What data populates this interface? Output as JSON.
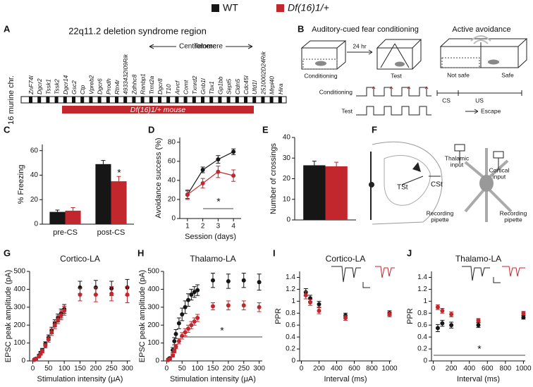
{
  "legend": [
    {
      "name": "WT",
      "color": "#161616"
    },
    {
      "name": "Df(16)1/+",
      "color": "#c1272d"
    }
  ],
  "panel_labels": [
    "A",
    "B",
    "C",
    "D",
    "E",
    "F",
    "G",
    "H",
    "I",
    "J"
  ],
  "panel_a": {
    "title": "22q11.2 deletion syndrome region",
    "centromere": "Centromere",
    "telomere": "Telomere",
    "chromosome": "16 murine chr.",
    "genes": [
      "ZnF74l",
      "Dgcr2",
      "Tssk1",
      "Tssk2",
      "Dgcr14",
      "Gsc2",
      "Ctp",
      "Vpreb2",
      "Dgcr6",
      "Prodh",
      "Rtn4r",
      "4933432I09Rik",
      "Zdhhc8",
      "Ranbp1",
      "Trmt2a",
      "Dgcr8",
      "T10",
      "Arvcf",
      "Comt",
      "Txnrd2",
      "Gnb1l",
      "Tbx1",
      "Gp1bb",
      "Sept5",
      "Cldn5",
      "Cdc45l",
      "Ufd1l",
      "2510002D24Rik",
      "Mrpl40",
      "Hira"
    ],
    "deletion": "Df(16)1/+ mouse"
  },
  "panel_b": {
    "fear_title": "Auditory-cued fear conditioning",
    "avoid_title": "Active avoidance",
    "delay": "24 hr",
    "box_conditioning": "Conditioning",
    "box_test": "Test",
    "not_safe": "Not safe",
    "safe": "Safe",
    "row_conditioning": "Conditioning",
    "row_test": "Test",
    "cs": "CS",
    "us": "US",
    "escape": "Escape"
  },
  "panel_f": {
    "tst": "TSt",
    "cst": "CSt",
    "thalamic": [
      "Thalamic",
      "input"
    ],
    "cortical": [
      "Cortical",
      "input"
    ],
    "pipette_left": [
      "Recording",
      "pipette"
    ],
    "pipette_right": [
      "Recording",
      "pipette"
    ]
  },
  "chart_data": [
    {
      "type": "bar",
      "ylabel": "% Freezing",
      "categories": [
        "pre-CS",
        "post-CS"
      ],
      "ylim": [
        0,
        65
      ],
      "yticks": [
        0,
        20,
        40,
        60
      ],
      "annotation": "*",
      "series": [
        {
          "color": "#161616",
          "values": [
            10,
            49
          ],
          "errors": [
            1.5,
            3
          ]
        },
        {
          "color": "#c1272d",
          "values": [
            11,
            35
          ],
          "errors": [
            2.5,
            4
          ]
        }
      ]
    },
    {
      "type": "line",
      "ylabel": "Avoidance success (%)",
      "xlabel": "Session (days)",
      "xlim": [
        0.5,
        4.5
      ],
      "xticks": [
        1,
        2,
        3,
        4
      ],
      "ylim": [
        0,
        85
      ],
      "yticks": [
        0,
        20,
        40,
        60,
        80
      ],
      "annotation": "*",
      "x": [
        1,
        2,
        3,
        4
      ],
      "series": [
        {
          "color": "#161616",
          "values": [
            25,
            51,
            62,
            70
          ],
          "errors": [
            4,
            3,
            4,
            3
          ]
        },
        {
          "color": "#c1272d",
          "values": [
            25,
            37,
            49,
            45
          ],
          "errors": [
            5,
            5,
            6,
            6
          ]
        }
      ]
    },
    {
      "type": "bar",
      "ylabel": "Number of crossings",
      "categories": [
        null
      ],
      "ylim": [
        0,
        40
      ],
      "yticks": [
        0,
        10,
        20,
        30,
        40
      ],
      "series": [
        {
          "color": "#161616",
          "values": [
            26.5
          ],
          "errors": [
            2
          ]
        },
        {
          "color": "#c1272d",
          "values": [
            26
          ],
          "errors": [
            2
          ]
        }
      ]
    },
    {
      "type": "scatter",
      "title": "Cortico-LA",
      "ylabel": "EPSC peak amplitude (pA)",
      "xlabel": "Stimulation intensity (μA)",
      "xlim": [
        -10,
        310
      ],
      "xticks": [
        0,
        50,
        100,
        150,
        200,
        250,
        300
      ],
      "ylim": [
        0,
        500
      ],
      "yticks": [
        0,
        100,
        200,
        300,
        400,
        500
      ],
      "x": [
        5,
        10,
        20,
        25,
        30,
        40,
        50,
        60,
        70,
        80,
        90,
        100,
        150,
        200,
        250,
        300
      ],
      "series": [
        {
          "color": "#161616",
          "values": [
            8,
            12,
            30,
            45,
            60,
            95,
            130,
            170,
            210,
            240,
            265,
            290,
            410,
            410,
            405,
            410
          ],
          "errors": [
            3,
            4,
            6,
            8,
            10,
            12,
            15,
            18,
            20,
            22,
            25,
            25,
            35,
            40,
            40,
            45
          ]
        },
        {
          "color": "#c1272d",
          "values": [
            6,
            10,
            25,
            40,
            55,
            85,
            120,
            160,
            200,
            230,
            255,
            280,
            370,
            370,
            375,
            370
          ],
          "errors": [
            3,
            4,
            6,
            8,
            10,
            12,
            15,
            18,
            20,
            22,
            25,
            25,
            35,
            40,
            40,
            45
          ]
        }
      ]
    },
    {
      "type": "scatter",
      "title": "Thalamo-LA",
      "ylabel": "EPSC peak amplitude (pA)",
      "xlabel": "Stimulation intensity (μA)",
      "xlim": [
        -10,
        310
      ],
      "xticks": [
        0,
        50,
        100,
        150,
        200,
        250,
        300
      ],
      "ylim": [
        0,
        500
      ],
      "yticks": [
        0,
        100,
        200,
        300,
        400,
        500
      ],
      "annotation": "*",
      "x": [
        5,
        10,
        20,
        25,
        30,
        40,
        50,
        60,
        70,
        80,
        90,
        100,
        150,
        200,
        250,
        300
      ],
      "series": [
        {
          "color": "#161616",
          "values": [
            8,
            15,
            60,
            110,
            150,
            210,
            260,
            300,
            340,
            370,
            385,
            395,
            450,
            445,
            450,
            440
          ],
          "errors": [
            3,
            5,
            15,
            20,
            25,
            30,
            35,
            35,
            35,
            30,
            30,
            30,
            40,
            40,
            40,
            45
          ]
        },
        {
          "color": "#c1272d",
          "values": [
            5,
            10,
            30,
            55,
            80,
            110,
            140,
            160,
            180,
            200,
            220,
            240,
            305,
            310,
            310,
            300
          ],
          "errors": [
            2,
            4,
            8,
            10,
            12,
            15,
            18,
            20,
            20,
            20,
            20,
            20,
            20,
            25,
            25,
            25
          ]
        }
      ]
    },
    {
      "type": "scatter",
      "title": "Cortico-LA",
      "ylabel": "PPR",
      "xlabel": "Interval (ms)",
      "xlim": [
        -20,
        1020
      ],
      "xticks": [
        0,
        200,
        400,
        600,
        800,
        1000
      ],
      "ylim": [
        0,
        1.5
      ],
      "yticks": [
        0,
        0.2,
        0.4,
        0.6,
        0.8,
        1,
        1.2,
        1.4
      ],
      "x": [
        50,
        100,
        200,
        500,
        1000
      ],
      "series": [
        {
          "color": "#161616",
          "values": [
            1.15,
            1.05,
            0.95,
            0.76,
            0.8
          ],
          "errors": [
            0.06,
            0.05,
            0.05,
            0.04,
            0.04
          ]
        },
        {
          "color": "#c1272d",
          "values": [
            1.1,
            0.98,
            0.84,
            0.72,
            0.78
          ],
          "errors": [
            0.06,
            0.05,
            0.05,
            0.04,
            0.04
          ]
        }
      ]
    },
    {
      "type": "scatter",
      "title": "Thalamo-LA",
      "ylabel": "PPR",
      "xlabel": "Interval (ms)",
      "xlim": [
        -20,
        1020
      ],
      "xticks": [
        0,
        200,
        400,
        600,
        800,
        1000
      ],
      "ylim": [
        0,
        1.5
      ],
      "yticks": [
        0,
        0.2,
        0.4,
        0.6,
        0.8,
        1,
        1.2,
        1.4
      ],
      "annotation": "*",
      "x": [
        50,
        100,
        200,
        500,
        1000
      ],
      "series": [
        {
          "color": "#161616",
          "values": [
            0.55,
            0.63,
            0.6,
            0.6,
            0.73
          ],
          "errors": [
            0.06,
            0.05,
            0.05,
            0.04,
            0.03
          ]
        },
        {
          "color": "#c1272d",
          "values": [
            0.9,
            0.84,
            0.78,
            0.68,
            0.8
          ],
          "errors": [
            0.04,
            0.04,
            0.04,
            0.03,
            0.03
          ]
        }
      ]
    }
  ]
}
